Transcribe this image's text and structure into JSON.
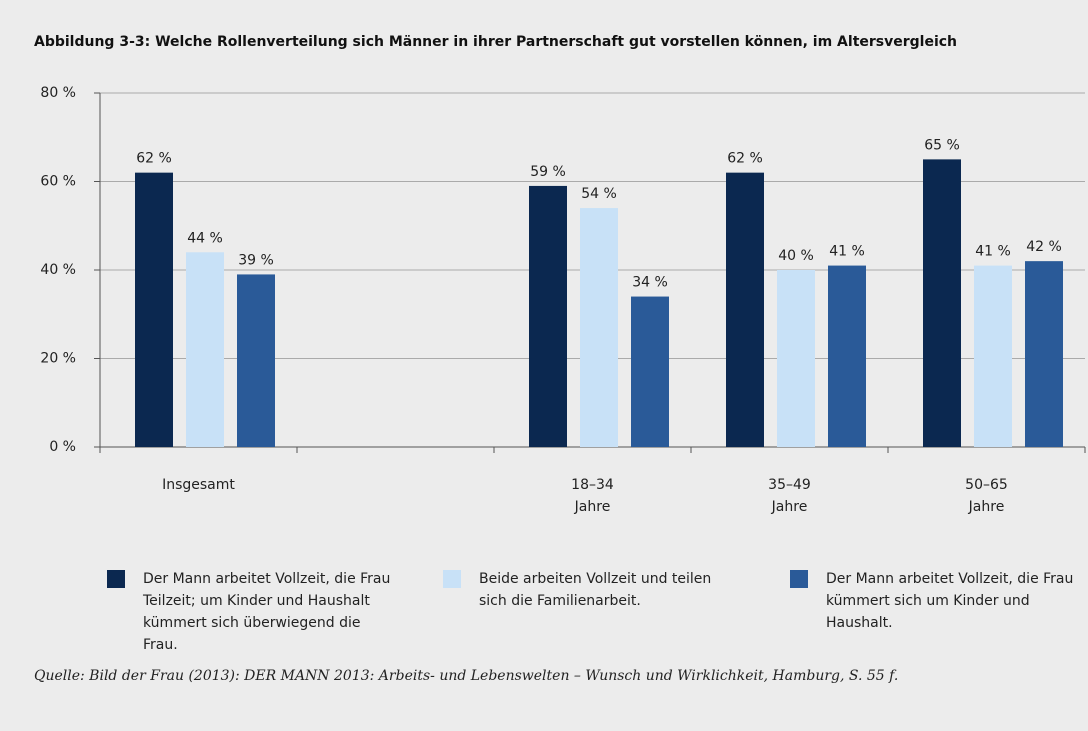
{
  "chart_data": {
    "type": "bar",
    "title": "Abbildung 3-3: Welche Rollenverteilung sich Männer in ihrer Partnerschaft gut vorstellen können, im Altersvergleich",
    "categories": [
      "Insgesamt",
      null,
      "18–34 Jahre",
      "35–49 Jahre",
      "50–65 Jahre"
    ],
    "series": [
      {
        "name": "Der Mann arbeitet Vollzeit, die Frau Teilzeit; um Kinder und Haushalt kümmert sich überwiegend die Frau.",
        "color": "#0b2850",
        "values": [
          62,
          null,
          59,
          62,
          65
        ],
        "value_labels": [
          "62 %",
          null,
          "59 %",
          "62 %",
          "65 %"
        ]
      },
      {
        "name": "Beide arbeiten Vollzeit und teilen sich die Familienarbeit.",
        "color": "#c8e1f7",
        "values": [
          44,
          null,
          54,
          40,
          41
        ],
        "value_labels": [
          "44 %",
          null,
          "54 %",
          "40 %",
          "41 %"
        ]
      },
      {
        "name": "Der Mann arbeitet Vollzeit, die Frau kümmert sich um Kinder und Haushalt.",
        "color": "#2a5a98",
        "values": [
          39,
          null,
          34,
          41,
          42
        ],
        "value_labels": [
          "39 %",
          null,
          "34 %",
          "41 %",
          "42 %"
        ]
      }
    ],
    "ylim": [
      0,
      80
    ],
    "yticks": [
      {
        "value": 0,
        "label": "0 %"
      },
      {
        "value": 20,
        "label": "20 %"
      },
      {
        "value": 40,
        "label": "40 %"
      },
      {
        "value": 60,
        "label": "60 %"
      },
      {
        "value": 80,
        "label": "80 %"
      }
    ],
    "grid": true,
    "source": "Quelle: Bild der Frau (2013): DER MANN 2013: Arbeits- und Lebenswelten – Wunsch und Wirklichkeit, Hamburg, S. 55 f."
  }
}
